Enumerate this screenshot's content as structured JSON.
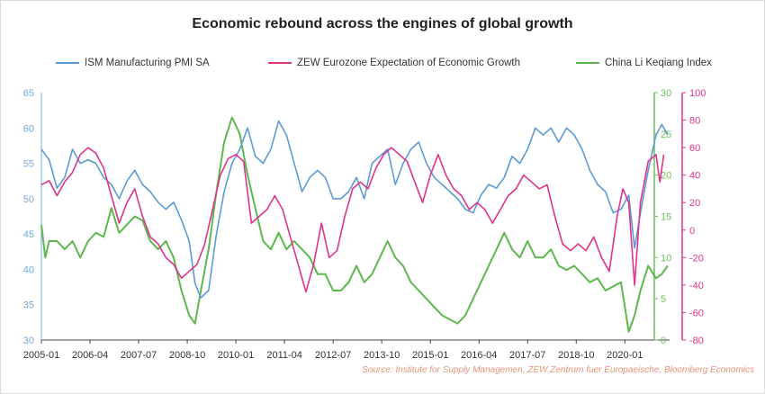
{
  "chart_data": {
    "type": "line",
    "title": "Economic rebound across the engines of global growth",
    "source": "Source: Institute for Supply Managemen, ZEW Zentrum fuer Europaeische, Bloomberg Economics",
    "x_tick_labels": [
      "2005-01",
      "2006-04",
      "2007-07",
      "2008-10",
      "2010-01",
      "2011-04",
      "2012-07",
      "2013-10",
      "2015-01",
      "2016-04",
      "2017-07",
      "2018-10",
      "2020-01"
    ],
    "axes": {
      "ism": {
        "ylim": [
          30,
          65
        ],
        "ticks": [
          30,
          35,
          40,
          45,
          50,
          55,
          60,
          65
        ],
        "color": "#6fa8dc"
      },
      "china": {
        "ylim": [
          0,
          30
        ],
        "ticks": [
          0,
          5,
          10,
          15,
          20,
          25,
          30
        ],
        "color": "#6ac259"
      },
      "zew": {
        "ylim": [
          -80,
          100
        ],
        "ticks": [
          -80,
          -60,
          -40,
          -20,
          0,
          20,
          40,
          60,
          80,
          100
        ],
        "color": "#e0338a"
      }
    },
    "legend_placement": "top",
    "series": [
      {
        "name": "ISM Manufacturing PMI SA",
        "axis": "ism",
        "color": "#5b9bd5",
        "points": [
          [
            2005.0,
            57
          ],
          [
            2005.2,
            55.5
          ],
          [
            2005.4,
            51.5
          ],
          [
            2005.6,
            53
          ],
          [
            2005.8,
            57
          ],
          [
            2006.0,
            55
          ],
          [
            2006.2,
            55.5
          ],
          [
            2006.4,
            55
          ],
          [
            2006.6,
            53
          ],
          [
            2006.8,
            52
          ],
          [
            2007.0,
            50
          ],
          [
            2007.2,
            52.5
          ],
          [
            2007.4,
            54
          ],
          [
            2007.6,
            52
          ],
          [
            2007.8,
            51
          ],
          [
            2008.0,
            49.5
          ],
          [
            2008.2,
            48.5
          ],
          [
            2008.4,
            49.5
          ],
          [
            2008.6,
            47
          ],
          [
            2008.8,
            44
          ],
          [
            2008.95,
            38
          ],
          [
            2009.1,
            36
          ],
          [
            2009.3,
            37
          ],
          [
            2009.5,
            45
          ],
          [
            2009.7,
            51
          ],
          [
            2009.9,
            55
          ],
          [
            2010.1,
            57
          ],
          [
            2010.3,
            60
          ],
          [
            2010.5,
            56
          ],
          [
            2010.7,
            55
          ],
          [
            2010.9,
            57
          ],
          [
            2011.1,
            61
          ],
          [
            2011.3,
            59
          ],
          [
            2011.5,
            55
          ],
          [
            2011.7,
            51
          ],
          [
            2011.9,
            53
          ],
          [
            2012.1,
            54
          ],
          [
            2012.3,
            53
          ],
          [
            2012.5,
            50
          ],
          [
            2012.7,
            50
          ],
          [
            2012.9,
            51
          ],
          [
            2013.1,
            53
          ],
          [
            2013.3,
            50
          ],
          [
            2013.5,
            55
          ],
          [
            2013.7,
            56
          ],
          [
            2013.9,
            57
          ],
          [
            2014.1,
            52
          ],
          [
            2014.3,
            55
          ],
          [
            2014.5,
            57
          ],
          [
            2014.7,
            58
          ],
          [
            2014.9,
            55
          ],
          [
            2015.1,
            53
          ],
          [
            2015.3,
            52
          ],
          [
            2015.5,
            51
          ],
          [
            2015.7,
            50
          ],
          [
            2015.9,
            48.5
          ],
          [
            2016.1,
            48
          ],
          [
            2016.3,
            50.5
          ],
          [
            2016.5,
            52
          ],
          [
            2016.7,
            51.5
          ],
          [
            2016.9,
            53
          ],
          [
            2017.1,
            56
          ],
          [
            2017.3,
            55
          ],
          [
            2017.5,
            57
          ],
          [
            2017.7,
            60
          ],
          [
            2017.9,
            59
          ],
          [
            2018.1,
            60
          ],
          [
            2018.3,
            58
          ],
          [
            2018.5,
            60
          ],
          [
            2018.7,
            59
          ],
          [
            2018.9,
            57
          ],
          [
            2019.1,
            54
          ],
          [
            2019.3,
            52
          ],
          [
            2019.5,
            51
          ],
          [
            2019.7,
            48
          ],
          [
            2019.9,
            48.5
          ],
          [
            2020.1,
            50.5
          ],
          [
            2020.25,
            43
          ],
          [
            2020.4,
            48
          ],
          [
            2020.6,
            54
          ],
          [
            2020.8,
            59
          ],
          [
            2020.95,
            60.5
          ],
          [
            2021.1,
            59
          ]
        ]
      },
      {
        "name": "ZEW Eurozone Expectation of Economic Growth",
        "axis": "zew",
        "color": "#e0338a",
        "points": [
          [
            2005.0,
            33
          ],
          [
            2005.2,
            36
          ],
          [
            2005.4,
            25
          ],
          [
            2005.6,
            35
          ],
          [
            2005.8,
            42
          ],
          [
            2006.0,
            55
          ],
          [
            2006.2,
            60
          ],
          [
            2006.4,
            56
          ],
          [
            2006.6,
            45
          ],
          [
            2006.8,
            25
          ],
          [
            2007.0,
            5
          ],
          [
            2007.2,
            20
          ],
          [
            2007.4,
            30
          ],
          [
            2007.6,
            10
          ],
          [
            2007.8,
            -5
          ],
          [
            2008.0,
            -10
          ],
          [
            2008.2,
            -20
          ],
          [
            2008.4,
            -25
          ],
          [
            2008.6,
            -35
          ],
          [
            2008.8,
            -30
          ],
          [
            2009.0,
            -25
          ],
          [
            2009.2,
            -10
          ],
          [
            2009.4,
            15
          ],
          [
            2009.6,
            40
          ],
          [
            2009.8,
            52
          ],
          [
            2010.0,
            55
          ],
          [
            2010.2,
            50
          ],
          [
            2010.4,
            5
          ],
          [
            2010.6,
            10
          ],
          [
            2010.8,
            15
          ],
          [
            2011.0,
            25
          ],
          [
            2011.2,
            15
          ],
          [
            2011.4,
            -5
          ],
          [
            2011.6,
            -25
          ],
          [
            2011.8,
            -45
          ],
          [
            2012.0,
            -25
          ],
          [
            2012.2,
            5
          ],
          [
            2012.4,
            -20
          ],
          [
            2012.6,
            -15
          ],
          [
            2012.8,
            10
          ],
          [
            2013.0,
            30
          ],
          [
            2013.2,
            35
          ],
          [
            2013.4,
            30
          ],
          [
            2013.6,
            45
          ],
          [
            2013.8,
            55
          ],
          [
            2014.0,
            60
          ],
          [
            2014.2,
            55
          ],
          [
            2014.4,
            50
          ],
          [
            2014.6,
            35
          ],
          [
            2014.8,
            20
          ],
          [
            2015.0,
            40
          ],
          [
            2015.2,
            55
          ],
          [
            2015.4,
            40
          ],
          [
            2015.6,
            30
          ],
          [
            2015.8,
            25
          ],
          [
            2016.0,
            15
          ],
          [
            2016.2,
            20
          ],
          [
            2016.4,
            15
          ],
          [
            2016.6,
            5
          ],
          [
            2016.8,
            15
          ],
          [
            2017.0,
            25
          ],
          [
            2017.2,
            30
          ],
          [
            2017.4,
            40
          ],
          [
            2017.6,
            35
          ],
          [
            2017.8,
            30
          ],
          [
            2018.0,
            33
          ],
          [
            2018.2,
            10
          ],
          [
            2018.4,
            -10
          ],
          [
            2018.6,
            -15
          ],
          [
            2018.8,
            -10
          ],
          [
            2019.0,
            -15
          ],
          [
            2019.2,
            -5
          ],
          [
            2019.4,
            -20
          ],
          [
            2019.6,
            -30
          ],
          [
            2019.8,
            10
          ],
          [
            2019.95,
            30
          ],
          [
            2020.1,
            20
          ],
          [
            2020.25,
            -40
          ],
          [
            2020.4,
            20
          ],
          [
            2020.6,
            50
          ],
          [
            2020.8,
            55
          ],
          [
            2020.9,
            35
          ],
          [
            2021.0,
            55
          ]
        ]
      },
      {
        "name": "China Li Keqiang Index",
        "axis": "china",
        "color": "#5cb84c",
        "points": [
          [
            2005.0,
            14
          ],
          [
            2005.1,
            10
          ],
          [
            2005.2,
            12
          ],
          [
            2005.4,
            12
          ],
          [
            2005.6,
            11
          ],
          [
            2005.8,
            12
          ],
          [
            2006.0,
            10
          ],
          [
            2006.2,
            12
          ],
          [
            2006.4,
            13
          ],
          [
            2006.6,
            12.5
          ],
          [
            2006.8,
            16
          ],
          [
            2007.0,
            13
          ],
          [
            2007.2,
            14
          ],
          [
            2007.4,
            15
          ],
          [
            2007.6,
            14.5
          ],
          [
            2007.8,
            12
          ],
          [
            2008.0,
            11
          ],
          [
            2008.2,
            12
          ],
          [
            2008.4,
            10
          ],
          [
            2008.6,
            6
          ],
          [
            2008.8,
            3
          ],
          [
            2008.95,
            2
          ],
          [
            2009.1,
            6
          ],
          [
            2009.3,
            11
          ],
          [
            2009.5,
            18
          ],
          [
            2009.7,
            24
          ],
          [
            2009.9,
            27
          ],
          [
            2010.1,
            25
          ],
          [
            2010.3,
            20
          ],
          [
            2010.5,
            16
          ],
          [
            2010.7,
            12
          ],
          [
            2010.9,
            11
          ],
          [
            2011.1,
            13
          ],
          [
            2011.3,
            11
          ],
          [
            2011.5,
            12
          ],
          [
            2011.7,
            11
          ],
          [
            2011.9,
            10
          ],
          [
            2012.1,
            8
          ],
          [
            2012.3,
            8
          ],
          [
            2012.5,
            6
          ],
          [
            2012.7,
            6
          ],
          [
            2012.9,
            7
          ],
          [
            2013.1,
            9
          ],
          [
            2013.3,
            7
          ],
          [
            2013.5,
            8
          ],
          [
            2013.7,
            10
          ],
          [
            2013.9,
            12
          ],
          [
            2014.1,
            10
          ],
          [
            2014.3,
            9
          ],
          [
            2014.5,
            7
          ],
          [
            2014.7,
            6
          ],
          [
            2014.9,
            5
          ],
          [
            2015.1,
            4
          ],
          [
            2015.3,
            3
          ],
          [
            2015.5,
            2.5
          ],
          [
            2015.7,
            2
          ],
          [
            2015.9,
            3
          ],
          [
            2016.1,
            5
          ],
          [
            2016.3,
            7
          ],
          [
            2016.5,
            9
          ],
          [
            2016.7,
            11
          ],
          [
            2016.9,
            13
          ],
          [
            2017.1,
            11
          ],
          [
            2017.3,
            10
          ],
          [
            2017.5,
            12
          ],
          [
            2017.7,
            10
          ],
          [
            2017.9,
            10
          ],
          [
            2018.1,
            11
          ],
          [
            2018.3,
            9
          ],
          [
            2018.5,
            8.5
          ],
          [
            2018.7,
            9
          ],
          [
            2018.9,
            8
          ],
          [
            2019.1,
            7
          ],
          [
            2019.3,
            7.5
          ],
          [
            2019.5,
            6
          ],
          [
            2019.7,
            6.5
          ],
          [
            2019.9,
            7
          ],
          [
            2020.1,
            1
          ],
          [
            2020.25,
            3
          ],
          [
            2020.4,
            6
          ],
          [
            2020.6,
            9
          ],
          [
            2020.8,
            7.5
          ],
          [
            2020.95,
            8
          ],
          [
            2021.1,
            9
          ]
        ]
      }
    ]
  }
}
